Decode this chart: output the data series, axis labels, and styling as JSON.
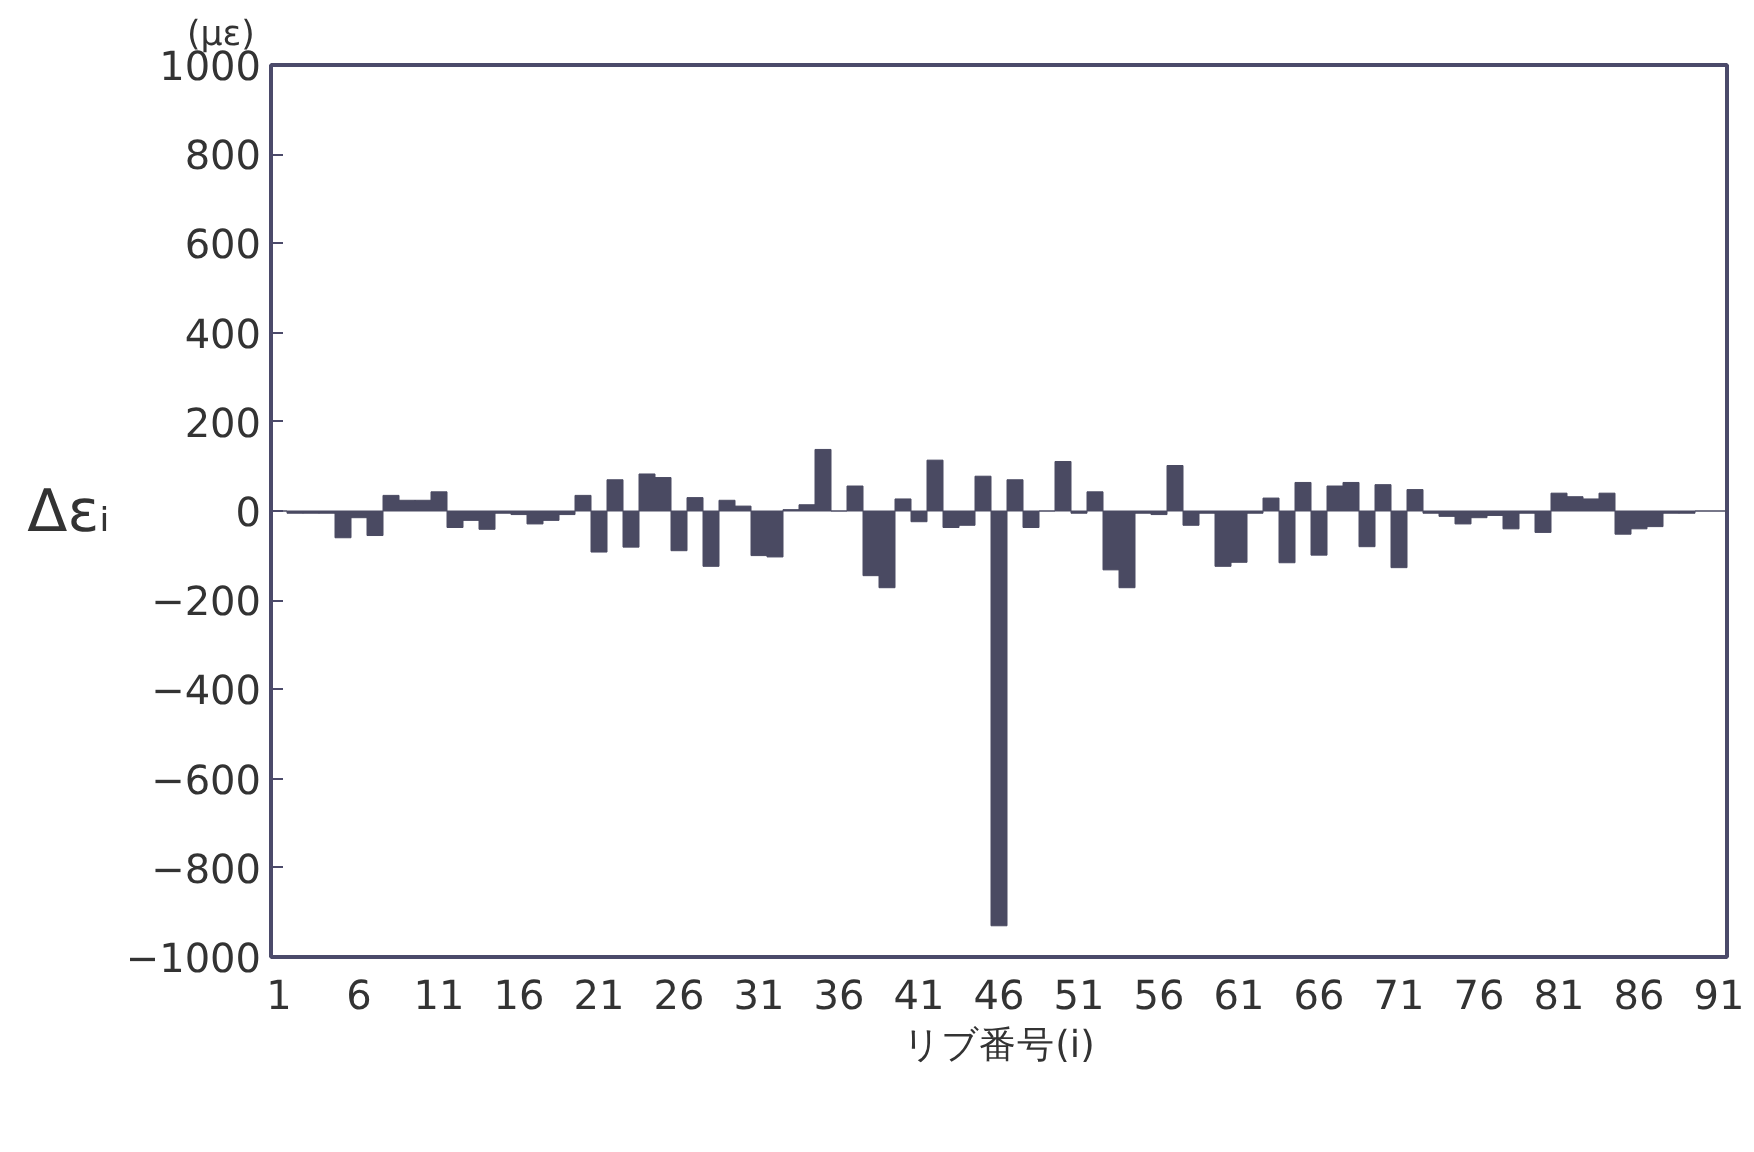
{
  "chart_data": {
    "type": "bar",
    "xlabel": "リブ番号(i)",
    "ylabel": "Δεᵢ",
    "annotations": [
      "(με)"
    ],
    "x": [
      1,
      2,
      3,
      4,
      5,
      6,
      7,
      8,
      9,
      10,
      11,
      12,
      13,
      14,
      15,
      16,
      17,
      18,
      19,
      20,
      21,
      22,
      23,
      24,
      25,
      26,
      27,
      28,
      29,
      30,
      31,
      32,
      33,
      34,
      35,
      36,
      37,
      38,
      39,
      40,
      41,
      42,
      43,
      44,
      45,
      46,
      47,
      48,
      49,
      50,
      51,
      52,
      53,
      54,
      55,
      56,
      57,
      58,
      59,
      60,
      61,
      62,
      63,
      64,
      65,
      66,
      67,
      68,
      69,
      70,
      71,
      72,
      73,
      74,
      75,
      76,
      77,
      78,
      79,
      80,
      81,
      82,
      83,
      84,
      85,
      86,
      87,
      88,
      89,
      90,
      91
    ],
    "values": [
      0,
      -5,
      -5,
      -5,
      -60,
      -15,
      -55,
      35,
      24,
      24,
      43,
      -37,
      -21,
      -41,
      -5,
      -8,
      -29,
      -21,
      -8,
      35,
      -92,
      70,
      -81,
      83,
      75,
      -89,
      30,
      -124,
      24,
      11,
      -100,
      -103,
      3,
      14,
      138,
      0,
      56,
      -145,
      -172,
      27,
      -24,
      114,
      -37,
      -32,
      78,
      -930,
      70,
      -37,
      0,
      111,
      -5,
      43,
      -132,
      -172,
      -5,
      -8,
      102,
      -32,
      -5,
      -124,
      -115,
      -5,
      29,
      -116,
      64,
      -99,
      56,
      64,
      -80,
      59,
      -127,
      48,
      -5,
      -12,
      -29,
      -15,
      -10,
      -40,
      -5,
      -48,
      40,
      32,
      27,
      40,
      -52,
      -40,
      -35,
      -5,
      -5,
      0,
      0
    ],
    "color": "#4a4a62",
    "xlim": [
      0.5,
      91.5
    ],
    "xticks": [
      1,
      6,
      11,
      16,
      21,
      26,
      31,
      36,
      41,
      46,
      51,
      56,
      61,
      66,
      71,
      76,
      81,
      86,
      91
    ],
    "ylim": [
      -1000,
      1000
    ],
    "yticks": [
      -1000,
      -800,
      -600,
      -400,
      -200,
      0,
      200,
      400,
      600,
      800,
      1000
    ],
    "grid": false
  }
}
